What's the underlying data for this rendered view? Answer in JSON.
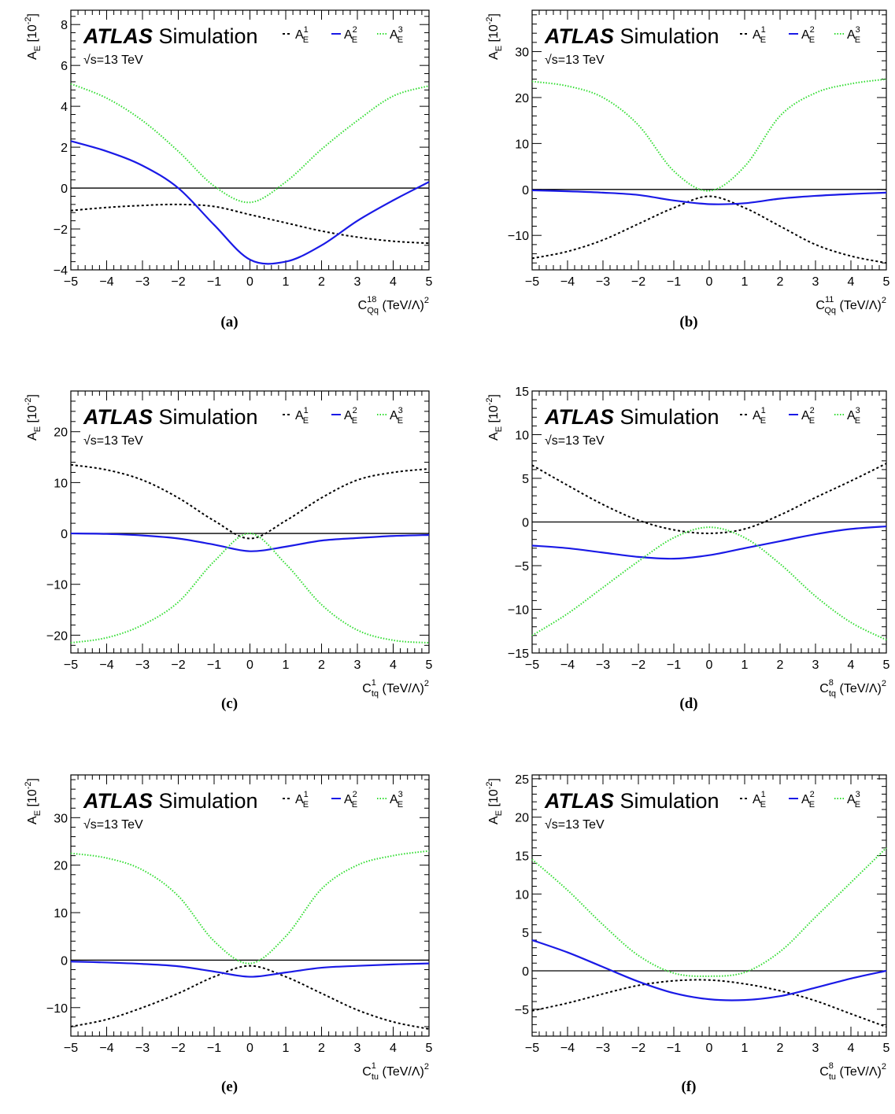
{
  "figure": {
    "experiment": "ATLAS",
    "label": "Simulation",
    "energy_prefix": "√",
    "energy_text": "s=13 TeV",
    "y_axis": {
      "main": "A",
      "sub": "E",
      "unit": "[10",
      "exp": "-2",
      "close": "]"
    },
    "x_unit": "(TeV/Λ)",
    "x_unit_exp": "2",
    "series_style": [
      {
        "name_main": "A",
        "name_sub": "E",
        "name_sup": "1",
        "color": "#000000",
        "dash": "3,3"
      },
      {
        "name_main": "A",
        "name_sub": "E",
        "name_sup": "2",
        "color": "#1a1ae6",
        "dash": ""
      },
      {
        "name_main": "A",
        "name_sub": "E",
        "name_sup": "3",
        "color": "#33dd33",
        "dash": "1.5,2"
      }
    ]
  },
  "chart_data": [
    {
      "type": "line",
      "caption": "(a)",
      "xlabel_main": "C",
      "xlabel_sub": "Qq",
      "xlabel_sup": "18",
      "xlim": [
        -5,
        5
      ],
      "ylim": [
        -4,
        8.7
      ],
      "yticks": [
        -4,
        -2,
        0,
        2,
        4,
        6,
        8
      ],
      "xticks": [
        -5,
        -4,
        -3,
        -2,
        -1,
        0,
        1,
        2,
        3,
        4,
        5
      ],
      "x": [
        -5,
        -4,
        -3,
        -2,
        -1,
        0,
        1,
        2,
        3,
        4,
        5
      ],
      "series": [
        {
          "values": [
            -1.1,
            -0.95,
            -0.85,
            -0.8,
            -0.9,
            -1.3,
            -1.7,
            -2.1,
            -2.4,
            -2.6,
            -2.7
          ]
        },
        {
          "values": [
            2.3,
            1.8,
            1.1,
            0.0,
            -1.8,
            -3.5,
            -3.6,
            -2.8,
            -1.6,
            -0.6,
            0.3
          ]
        },
        {
          "values": [
            5.1,
            4.4,
            3.3,
            1.8,
            0.1,
            -0.7,
            0.3,
            1.9,
            3.3,
            4.5,
            5.0
          ]
        }
      ]
    },
    {
      "type": "line",
      "caption": "(b)",
      "xlabel_main": "C",
      "xlabel_sub": "Qq",
      "xlabel_sup": "11",
      "xlim": [
        -5,
        5
      ],
      "ylim": [
        -17.5,
        39
      ],
      "yticks": [
        -10,
        0,
        10,
        20,
        30
      ],
      "xticks": [
        -5,
        -4,
        -3,
        -2,
        -1,
        0,
        1,
        2,
        3,
        4,
        5
      ],
      "x": [
        -5,
        -4,
        -3,
        -2,
        -1,
        0,
        1,
        2,
        3,
        4,
        5
      ],
      "series": [
        {
          "values": [
            -15,
            -13.5,
            -11,
            -7.5,
            -4,
            -1.5,
            -4,
            -8,
            -12,
            -14.5,
            -16
          ]
        },
        {
          "values": [
            -0.2,
            -0.4,
            -0.7,
            -1.2,
            -2.4,
            -3.2,
            -3.0,
            -2.0,
            -1.4,
            -1.0,
            -0.7
          ]
        },
        {
          "values": [
            23.5,
            22.5,
            20,
            14,
            4,
            -0.3,
            5,
            16,
            21,
            23,
            24
          ]
        }
      ]
    },
    {
      "type": "line",
      "caption": "(c)",
      "xlabel_main": "C",
      "xlabel_sub": "tq",
      "xlabel_sup": "1",
      "xlim": [
        -5,
        5
      ],
      "ylim": [
        -23.5,
        28
      ],
      "yticks": [
        -20,
        -10,
        0,
        10,
        20
      ],
      "xticks": [
        -5,
        -4,
        -3,
        -2,
        -1,
        0,
        1,
        2,
        3,
        4,
        5
      ],
      "x": [
        -5,
        -4,
        -3,
        -2,
        -1,
        0,
        1,
        2,
        3,
        4,
        5
      ],
      "series": [
        {
          "values": [
            13.5,
            12.5,
            10.5,
            7,
            2.5,
            -1,
            2.5,
            7,
            10.5,
            12,
            12.7
          ]
        },
        {
          "values": [
            0,
            -0.1,
            -0.4,
            -1.0,
            -2.2,
            -3.5,
            -2.6,
            -1.4,
            -0.9,
            -0.5,
            -0.3
          ]
        },
        {
          "values": [
            -21.5,
            -20.5,
            -18,
            -13.5,
            -5.5,
            0,
            -6,
            -14,
            -19,
            -21,
            -21.5
          ]
        }
      ]
    },
    {
      "type": "line",
      "caption": "(d)",
      "xlabel_main": "C",
      "xlabel_sub": "tq",
      "xlabel_sup": "8",
      "xlim": [
        -5,
        5
      ],
      "ylim": [
        -15,
        15
      ],
      "yticks": [
        -15,
        -10,
        -5,
        0,
        5,
        10,
        15
      ],
      "xticks": [
        -5,
        -4,
        -3,
        -2,
        -1,
        0,
        1,
        2,
        3,
        4,
        5
      ],
      "x": [
        -5,
        -4,
        -3,
        -2,
        -1,
        0,
        1,
        2,
        3,
        4,
        5
      ],
      "series": [
        {
          "values": [
            6.5,
            4.2,
            2.0,
            0.2,
            -0.9,
            -1.3,
            -0.8,
            0.8,
            2.8,
            4.7,
            6.7
          ]
        },
        {
          "values": [
            -2.7,
            -3.0,
            -3.5,
            -4.0,
            -4.2,
            -3.8,
            -3.0,
            -2.2,
            -1.4,
            -0.8,
            -0.5
          ]
        },
        {
          "values": [
            -13,
            -10.5,
            -7.5,
            -4.5,
            -1.8,
            -0.6,
            -1.8,
            -4.8,
            -8.5,
            -11.5,
            -13.5
          ]
        }
      ]
    },
    {
      "type": "line",
      "caption": "(e)",
      "xlabel_main": "C",
      "xlabel_sub": "tu",
      "xlabel_sup": "1",
      "xlim": [
        -5,
        5
      ],
      "ylim": [
        -16,
        39
      ],
      "yticks": [
        -10,
        0,
        10,
        20,
        30
      ],
      "xticks": [
        -5,
        -4,
        -3,
        -2,
        -1,
        0,
        1,
        2,
        3,
        4,
        5
      ],
      "x": [
        -5,
        -4,
        -3,
        -2,
        -1,
        0,
        1,
        2,
        3,
        4,
        5
      ],
      "series": [
        {
          "values": [
            -14,
            -12.5,
            -10,
            -7,
            -3.5,
            -1.2,
            -3.5,
            -7,
            -10.5,
            -13,
            -14.5
          ]
        },
        {
          "values": [
            -0.3,
            -0.5,
            -0.8,
            -1.3,
            -2.4,
            -3.5,
            -2.6,
            -1.6,
            -1.2,
            -0.9,
            -0.7
          ]
        },
        {
          "values": [
            22.5,
            21.5,
            19,
            13.5,
            4,
            -0.7,
            5,
            15,
            20,
            22,
            23
          ]
        }
      ]
    },
    {
      "type": "line",
      "caption": "(f)",
      "xlabel_main": "C",
      "xlabel_sub": "tu",
      "xlabel_sup": "8",
      "xlim": [
        -5,
        5
      ],
      "ylim": [
        -8.5,
        25.5
      ],
      "yticks": [
        -5,
        0,
        5,
        10,
        15,
        20,
        25
      ],
      "xticks": [
        -5,
        -4,
        -3,
        -2,
        -1,
        0,
        1,
        2,
        3,
        4,
        5
      ],
      "x": [
        -5,
        -4,
        -3,
        -2,
        -1,
        0,
        1,
        2,
        3,
        4,
        5
      ],
      "series": [
        {
          "values": [
            -5.2,
            -4.2,
            -3.0,
            -1.9,
            -1.3,
            -1.2,
            -1.7,
            -2.6,
            -3.9,
            -5.6,
            -7.3
          ]
        },
        {
          "values": [
            4.0,
            2.4,
            0.5,
            -1.4,
            -2.9,
            -3.7,
            -3.8,
            -3.3,
            -2.2,
            -1.0,
            0.0
          ]
        },
        {
          "values": [
            14.5,
            10.5,
            6,
            2,
            -0.3,
            -0.7,
            -0.2,
            2.5,
            7,
            11.5,
            16
          ]
        }
      ]
    }
  ]
}
